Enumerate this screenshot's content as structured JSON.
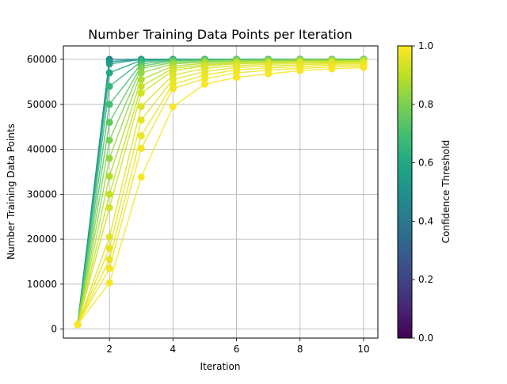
{
  "chart_data": {
    "type": "line",
    "title": "Number Training Data Points per Iteration",
    "xlabel": "Iteration",
    "ylabel": "Number Training Data Points",
    "x": [
      1,
      2,
      3,
      4,
      5,
      6,
      7,
      8,
      9,
      10
    ],
    "xlim": [
      0.55,
      10.45
    ],
    "ylim": [
      -2000,
      63000
    ],
    "xticks": [
      2,
      4,
      6,
      8,
      10
    ],
    "yticks": [
      0,
      10000,
      20000,
      30000,
      40000,
      50000,
      60000
    ],
    "grid": true,
    "colormap": "viridis",
    "colorbar": {
      "label": "Confidence Threshold",
      "range": [
        0.0,
        1.0
      ],
      "ticks": [
        0.0,
        0.2,
        0.4,
        0.6,
        0.8,
        1.0
      ],
      "tick_labels": [
        "0.0",
        "0.2",
        "0.4",
        "0.6",
        "0.8",
        "1.0"
      ]
    },
    "series": [
      {
        "threshold": 0.45,
        "values": [
          1000,
          60000,
          60000,
          60000,
          60000,
          60000,
          60000,
          60000,
          60000,
          60000
        ]
      },
      {
        "threshold": 0.5,
        "values": [
          1000,
          59500,
          60000,
          60000,
          60000,
          60000,
          60000,
          60000,
          60000,
          60000
        ]
      },
      {
        "threshold": 0.55,
        "values": [
          1000,
          59000,
          60000,
          60000,
          60000,
          60000,
          60000,
          60000,
          60000,
          60000
        ]
      },
      {
        "threshold": 0.6,
        "values": [
          1000,
          57000,
          59800,
          60000,
          60000,
          60000,
          60000,
          60000,
          60000,
          60000
        ]
      },
      {
        "threshold": 0.65,
        "values": [
          1000,
          54000,
          59500,
          59900,
          60000,
          60000,
          60000,
          60000,
          60000,
          60000
        ]
      },
      {
        "threshold": 0.7,
        "values": [
          1000,
          50000,
          59000,
          59800,
          59900,
          60000,
          60000,
          60000,
          60000,
          60000
        ]
      },
      {
        "threshold": 0.75,
        "values": [
          1000,
          46000,
          58500,
          59600,
          59800,
          59900,
          59900,
          60000,
          60000,
          60000
        ]
      },
      {
        "threshold": 0.8,
        "values": [
          1000,
          42000,
          58000,
          59300,
          59600,
          59800,
          59800,
          59900,
          59900,
          59900
        ]
      },
      {
        "threshold": 0.84,
        "values": [
          1000,
          38000,
          57000,
          59000,
          59400,
          59600,
          59700,
          59800,
          59800,
          59800
        ]
      },
      {
        "threshold": 0.88,
        "values": [
          1000,
          34000,
          55500,
          58500,
          59100,
          59400,
          59500,
          59600,
          59700,
          59700
        ]
      },
      {
        "threshold": 0.91,
        "values": [
          1000,
          30000,
          54000,
          58000,
          58800,
          59200,
          59300,
          59500,
          59500,
          59600
        ]
      },
      {
        "threshold": 0.93,
        "values": [
          1000,
          27000,
          52500,
          57500,
          58500,
          59000,
          59200,
          59400,
          59400,
          59500
        ]
      },
      {
        "threshold": 0.95,
        "values": [
          1000,
          20500,
          49500,
          56500,
          58000,
          58600,
          58900,
          59100,
          59200,
          59300
        ]
      },
      {
        "threshold": 0.96,
        "values": [
          1000,
          18000,
          46500,
          55500,
          57300,
          58200,
          58500,
          58800,
          59000,
          59100
        ]
      },
      {
        "threshold": 0.97,
        "values": [
          1000,
          15500,
          43000,
          54500,
          56500,
          57700,
          58100,
          58400,
          58700,
          58800
        ]
      },
      {
        "threshold": 0.98,
        "values": [
          1000,
          13500,
          40200,
          53500,
          55700,
          57000,
          57600,
          58000,
          58300,
          58500
        ]
      },
      {
        "threshold": 0.99,
        "values": [
          1000,
          10300,
          33800,
          49500,
          54500,
          56000,
          56800,
          57500,
          57900,
          58200
        ]
      }
    ]
  }
}
